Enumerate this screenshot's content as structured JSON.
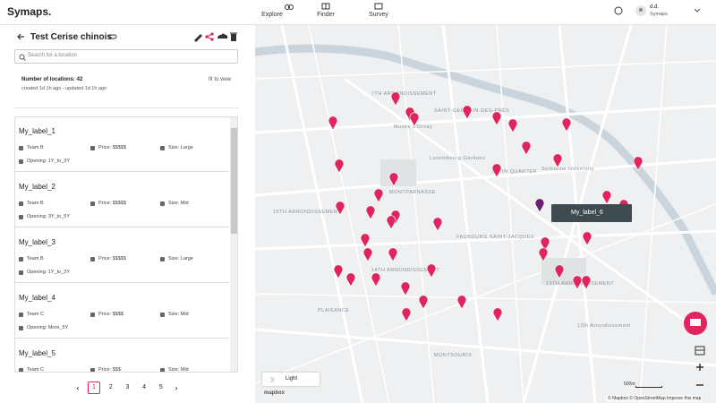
{
  "header": {
    "brand": "Symaps.",
    "nav": [
      "Explore",
      "Finder",
      "Survey"
    ],
    "user": {
      "name": "d.d.",
      "org": "Symaps"
    }
  },
  "sidebar": {
    "title": "Test Cerise chinois",
    "search_placeholder": "Search for a location",
    "location_count": "Number of locations: 42",
    "timestamps": "created 1d 1h ago - updated 1d 1h ago",
    "fit_to_view": "fit to view",
    "items": [
      {
        "name": "My_label_1",
        "team": "Team B",
        "price": "Price: $$$$$",
        "size": "Size: Large",
        "opening": "Opening: 1Y_to_3Y"
      },
      {
        "name": "My_label_2",
        "team": "Team B",
        "price": "Price: $$$$$",
        "size": "Size: Mid",
        "opening": "Opening: 3Y_to_5Y"
      },
      {
        "name": "My_label_3",
        "team": "Team B",
        "price": "Price: $$$$$",
        "size": "Size: Large",
        "opening": "Opening: 1Y_to_3Y"
      },
      {
        "name": "My_label_4",
        "team": "Team C",
        "price": "Price: $$$$",
        "size": "Size: Mid",
        "opening": "Opening: More_5Y"
      },
      {
        "name": "My_label_5",
        "team": "Team C",
        "price": "Price: $$$",
        "size": "Size: Mid"
      }
    ],
    "pagination": [
      "1",
      "2",
      "3",
      "4",
      "5"
    ]
  },
  "map": {
    "tooltip": "My_label_6",
    "style": "Light",
    "scale": "500m",
    "attribution": "© Mapbox © OpenStreetMap Improve this map",
    "logo": "mapbox",
    "labels": [
      "7TH ARRONDISSEMENT",
      "SAINT-GERMAIN-DES-PRÉS",
      "LATIN QUARTER",
      "MONTPARNASSE",
      "15TH ARRONDISSEMENT",
      "FAUBOURG SAINT-JACQUES",
      "14TH ARRONDISSEMENT",
      "13TH ARRONDISSEMENT",
      "MONTSOURIS",
      "PLAISANCE",
      "13th Arrondissement",
      "Sorbonne University",
      "Musée d'Orsay",
      "Luxembourg Gardens"
    ]
  }
}
